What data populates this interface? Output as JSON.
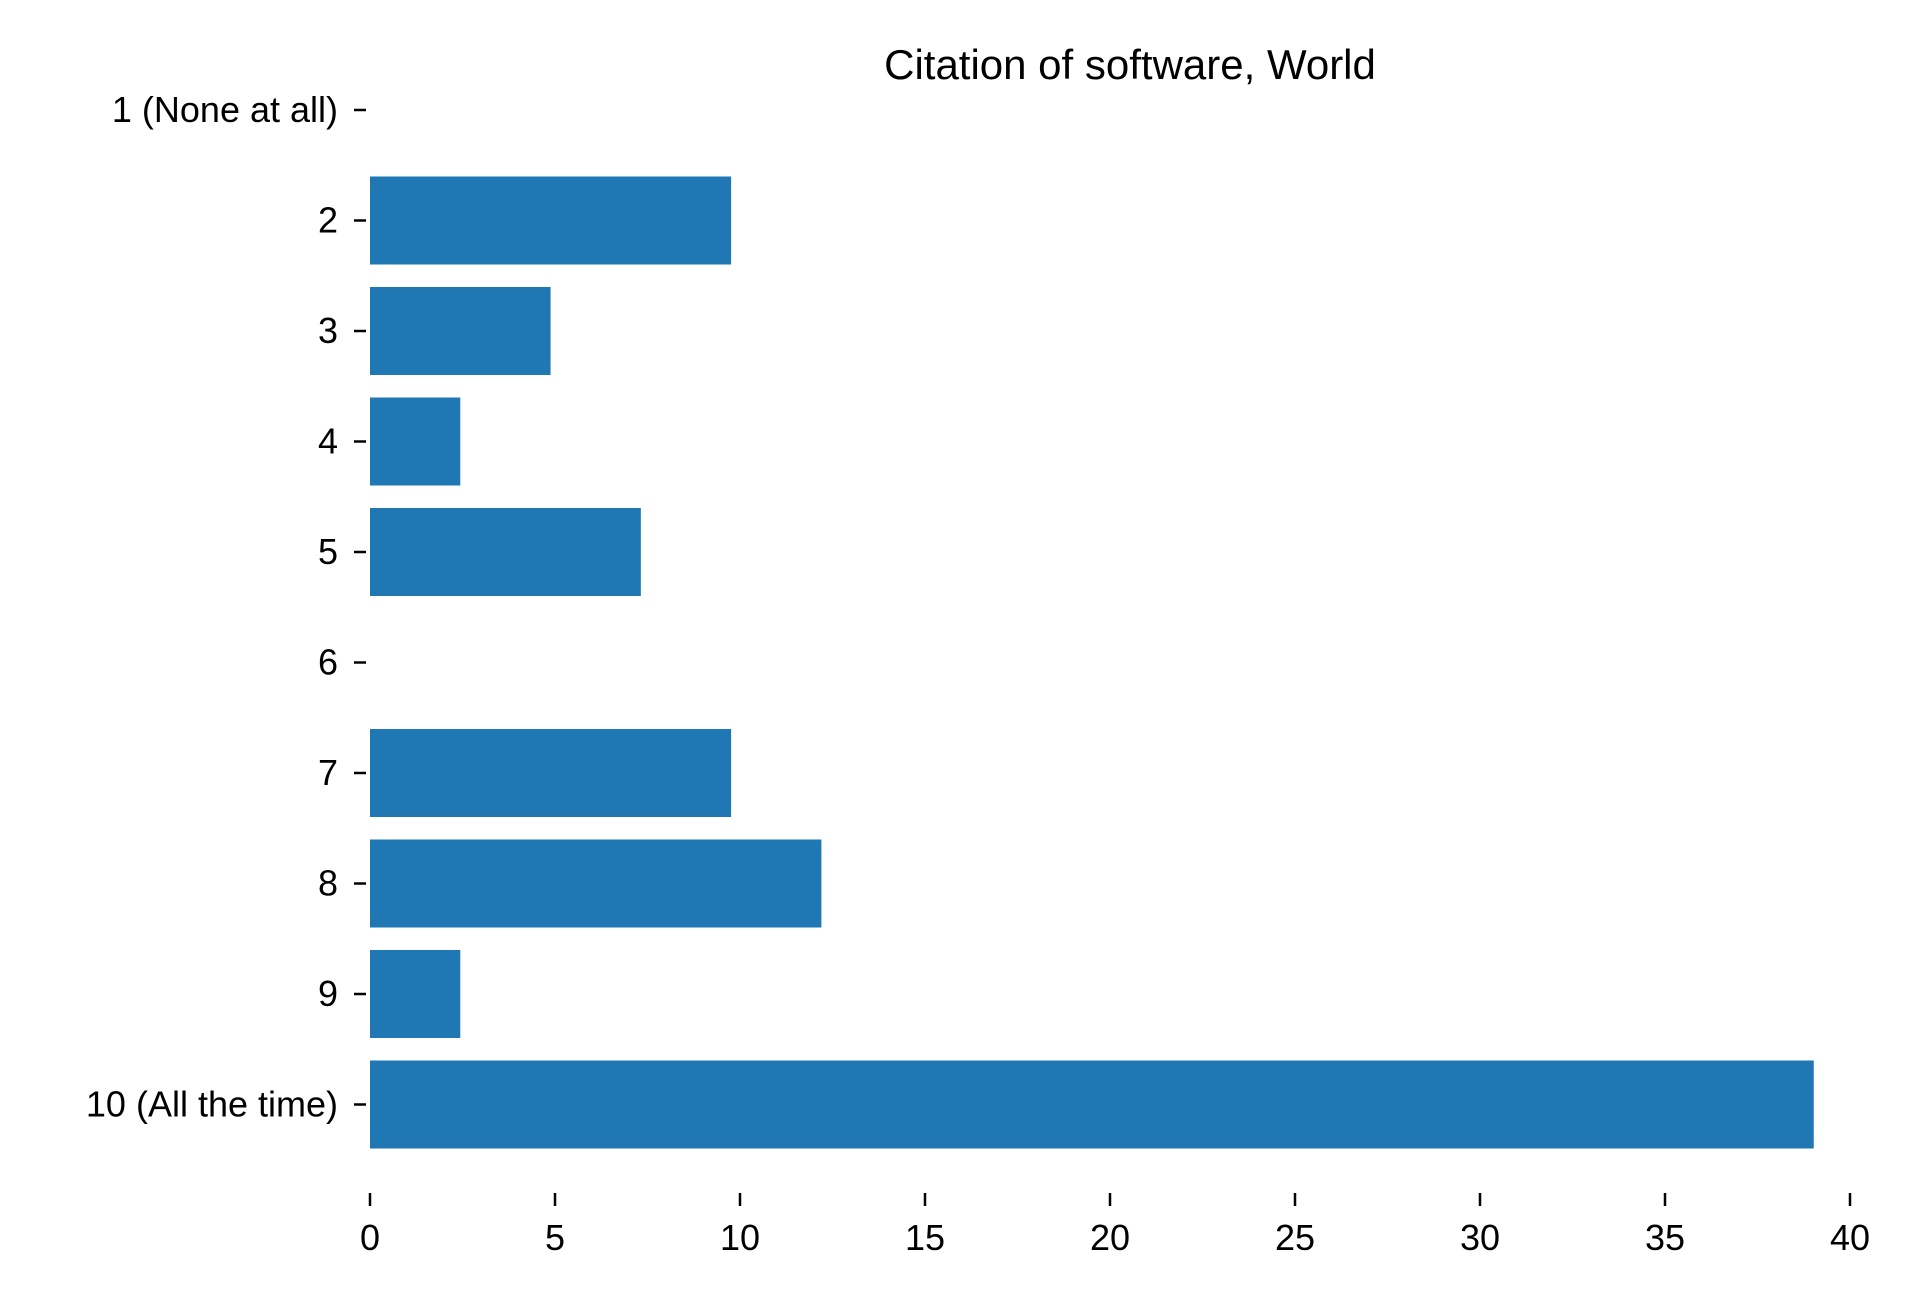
{
  "chart_data": {
    "type": "bar",
    "orientation": "horizontal",
    "title": "Citation of software, World",
    "xlabel": "",
    "ylabel": "",
    "categories": [
      "1 (None at all)",
      "2",
      "3",
      "4",
      "5",
      "6",
      "7",
      "8",
      "9",
      "10 (All the time)"
    ],
    "values": [
      0,
      9.76,
      4.88,
      2.44,
      7.32,
      0,
      9.76,
      12.2,
      2.44,
      39.02
    ],
    "xlim": [
      0,
      40
    ],
    "xticks": [
      "0",
      "5",
      "10",
      "15",
      "20",
      "25",
      "30",
      "35",
      "40"
    ],
    "grid": false,
    "legend": "none",
    "bar_color": "#1f77b4"
  }
}
